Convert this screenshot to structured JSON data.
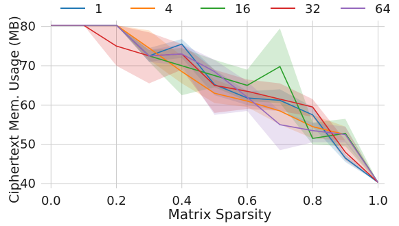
{
  "chart_data": {
    "type": "line",
    "title": "",
    "xlabel": "Matrix Sparsity",
    "ylabel": "Ciphertext Mem. Usage (MB)",
    "xlim": [
      -0.03,
      1.02
    ],
    "ylim": [
      38.8,
      81.5
    ],
    "xticks": [
      0.0,
      0.2,
      0.4,
      0.6,
      0.8,
      1.0
    ],
    "xtick_labels": [
      "0.0",
      "0.2",
      "0.4",
      "0.6",
      "0.8",
      "1.0"
    ],
    "yticks": [
      40,
      50,
      60,
      70,
      80
    ],
    "ytick_labels": [
      "40",
      "50",
      "60",
      "70",
      "80"
    ],
    "grid": true,
    "legend_position": "top",
    "x": [
      0.0,
      0.1,
      0.2,
      0.3,
      0.4,
      0.5,
      0.6,
      0.7,
      0.8,
      0.9,
      1.0
    ],
    "series": [
      {
        "name": "1",
        "color": "#1f77b4",
        "values": [
          80.3,
          80.3,
          80.3,
          72.5,
          75.5,
          65.2,
          61.8,
          61.2,
          57.5,
          46.5,
          40.3
        ],
        "band_low": [
          80.3,
          80.3,
          80.3,
          71.0,
          72.0,
          62.5,
          60.0,
          58.5,
          54.5,
          45.5,
          40.3
        ],
        "band_high": [
          80.3,
          80.3,
          80.3,
          74.5,
          76.8,
          69.0,
          63.5,
          64.0,
          59.5,
          47.5,
          40.3
        ]
      },
      {
        "name": "4",
        "color": "#ff7f0e",
        "values": [
          80.3,
          80.3,
          80.3,
          74.5,
          68.5,
          63.0,
          61.0,
          58.5,
          54.5,
          52.5,
          40.3
        ],
        "band_low": [
          80.3,
          80.3,
          80.3,
          71.5,
          65.5,
          60.5,
          59.5,
          55.0,
          51.5,
          51.0,
          40.3
        ],
        "band_high": [
          80.3,
          80.3,
          80.3,
          79.0,
          72.5,
          66.5,
          63.5,
          61.5,
          57.5,
          54.5,
          40.3
        ]
      },
      {
        "name": "16",
        "color": "#2ca02c",
        "values": [
          80.3,
          80.3,
          80.3,
          72.5,
          70.0,
          67.5,
          65.0,
          69.8,
          51.5,
          52.8,
          40.3
        ],
        "band_low": [
          80.3,
          80.3,
          80.3,
          71.0,
          62.5,
          64.5,
          61.0,
          60.5,
          50.0,
          49.5,
          40.3
        ],
        "band_high": [
          80.3,
          80.3,
          80.3,
          74.0,
          74.5,
          71.5,
          69.0,
          79.5,
          55.5,
          56.5,
          40.3
        ]
      },
      {
        "name": "32",
        "color": "#d62728",
        "values": [
          80.3,
          80.3,
          75.0,
          72.5,
          73.0,
          65.0,
          63.5,
          61.5,
          59.5,
          48.0,
          40.3
        ],
        "band_low": [
          80.3,
          80.3,
          70.0,
          65.5,
          69.0,
          58.0,
          59.0,
          58.5,
          57.0,
          46.0,
          40.3
        ],
        "band_high": [
          80.3,
          80.3,
          80.3,
          78.5,
          75.5,
          69.0,
          66.5,
          65.5,
          61.5,
          51.0,
          40.3
        ]
      },
      {
        "name": "64",
        "color": "#9467bd",
        "values": [
          80.3,
          80.3,
          80.3,
          72.5,
          73.0,
          68.5,
          62.0,
          55.0,
          53.5,
          52.5,
          40.3
        ],
        "band_low": [
          80.3,
          80.3,
          80.3,
          71.0,
          70.0,
          57.5,
          58.5,
          48.5,
          50.5,
          50.5,
          40.3
        ],
        "band_high": [
          80.3,
          80.3,
          80.3,
          74.0,
          75.5,
          71.5,
          66.0,
          58.5,
          55.5,
          54.5,
          40.3
        ]
      }
    ]
  }
}
